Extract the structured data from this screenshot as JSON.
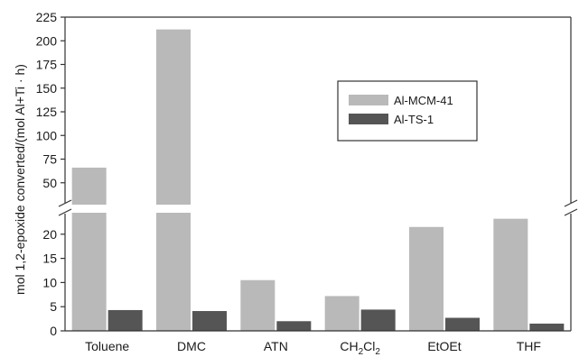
{
  "chart_data": {
    "type": "bar",
    "categories": [
      "Toluene",
      "DMC",
      "ATN",
      "CH2Cl2",
      "EtOEt",
      "THF"
    ],
    "category_labels": [
      {
        "main": "Toluene",
        "sub": ""
      },
      {
        "main": "DMC",
        "sub": ""
      },
      {
        "main": "ATN",
        "sub": ""
      },
      {
        "main": "CH",
        "sub": "2",
        "main2": "Cl",
        "sub2": "2"
      },
      {
        "main": "EtOEt",
        "sub": ""
      },
      {
        "main": "THF",
        "sub": ""
      }
    ],
    "series": [
      {
        "name": "Al-MCM-41",
        "color": "#b9b9b9",
        "values": [
          66,
          212,
          10.5,
          7.2,
          21.5,
          23.2
        ]
      },
      {
        "name": "Al-TS-1",
        "color": "#555555",
        "values": [
          4.3,
          4.1,
          2.0,
          4.4,
          2.7,
          1.5
        ]
      }
    ],
    "ylabel": "mol 1,2-epoxide converted/(mol Al+Ti · h)",
    "axis_break": {
      "lower_range": [
        0,
        25
      ],
      "upper_range": [
        25,
        225
      ]
    },
    "y_ticks_lower": [
      0,
      5,
      10,
      15,
      20
    ],
    "y_ticks_upper": [
      50,
      75,
      100,
      125,
      150,
      175,
      200,
      225
    ],
    "legend_position": "center-right",
    "grid": false
  }
}
